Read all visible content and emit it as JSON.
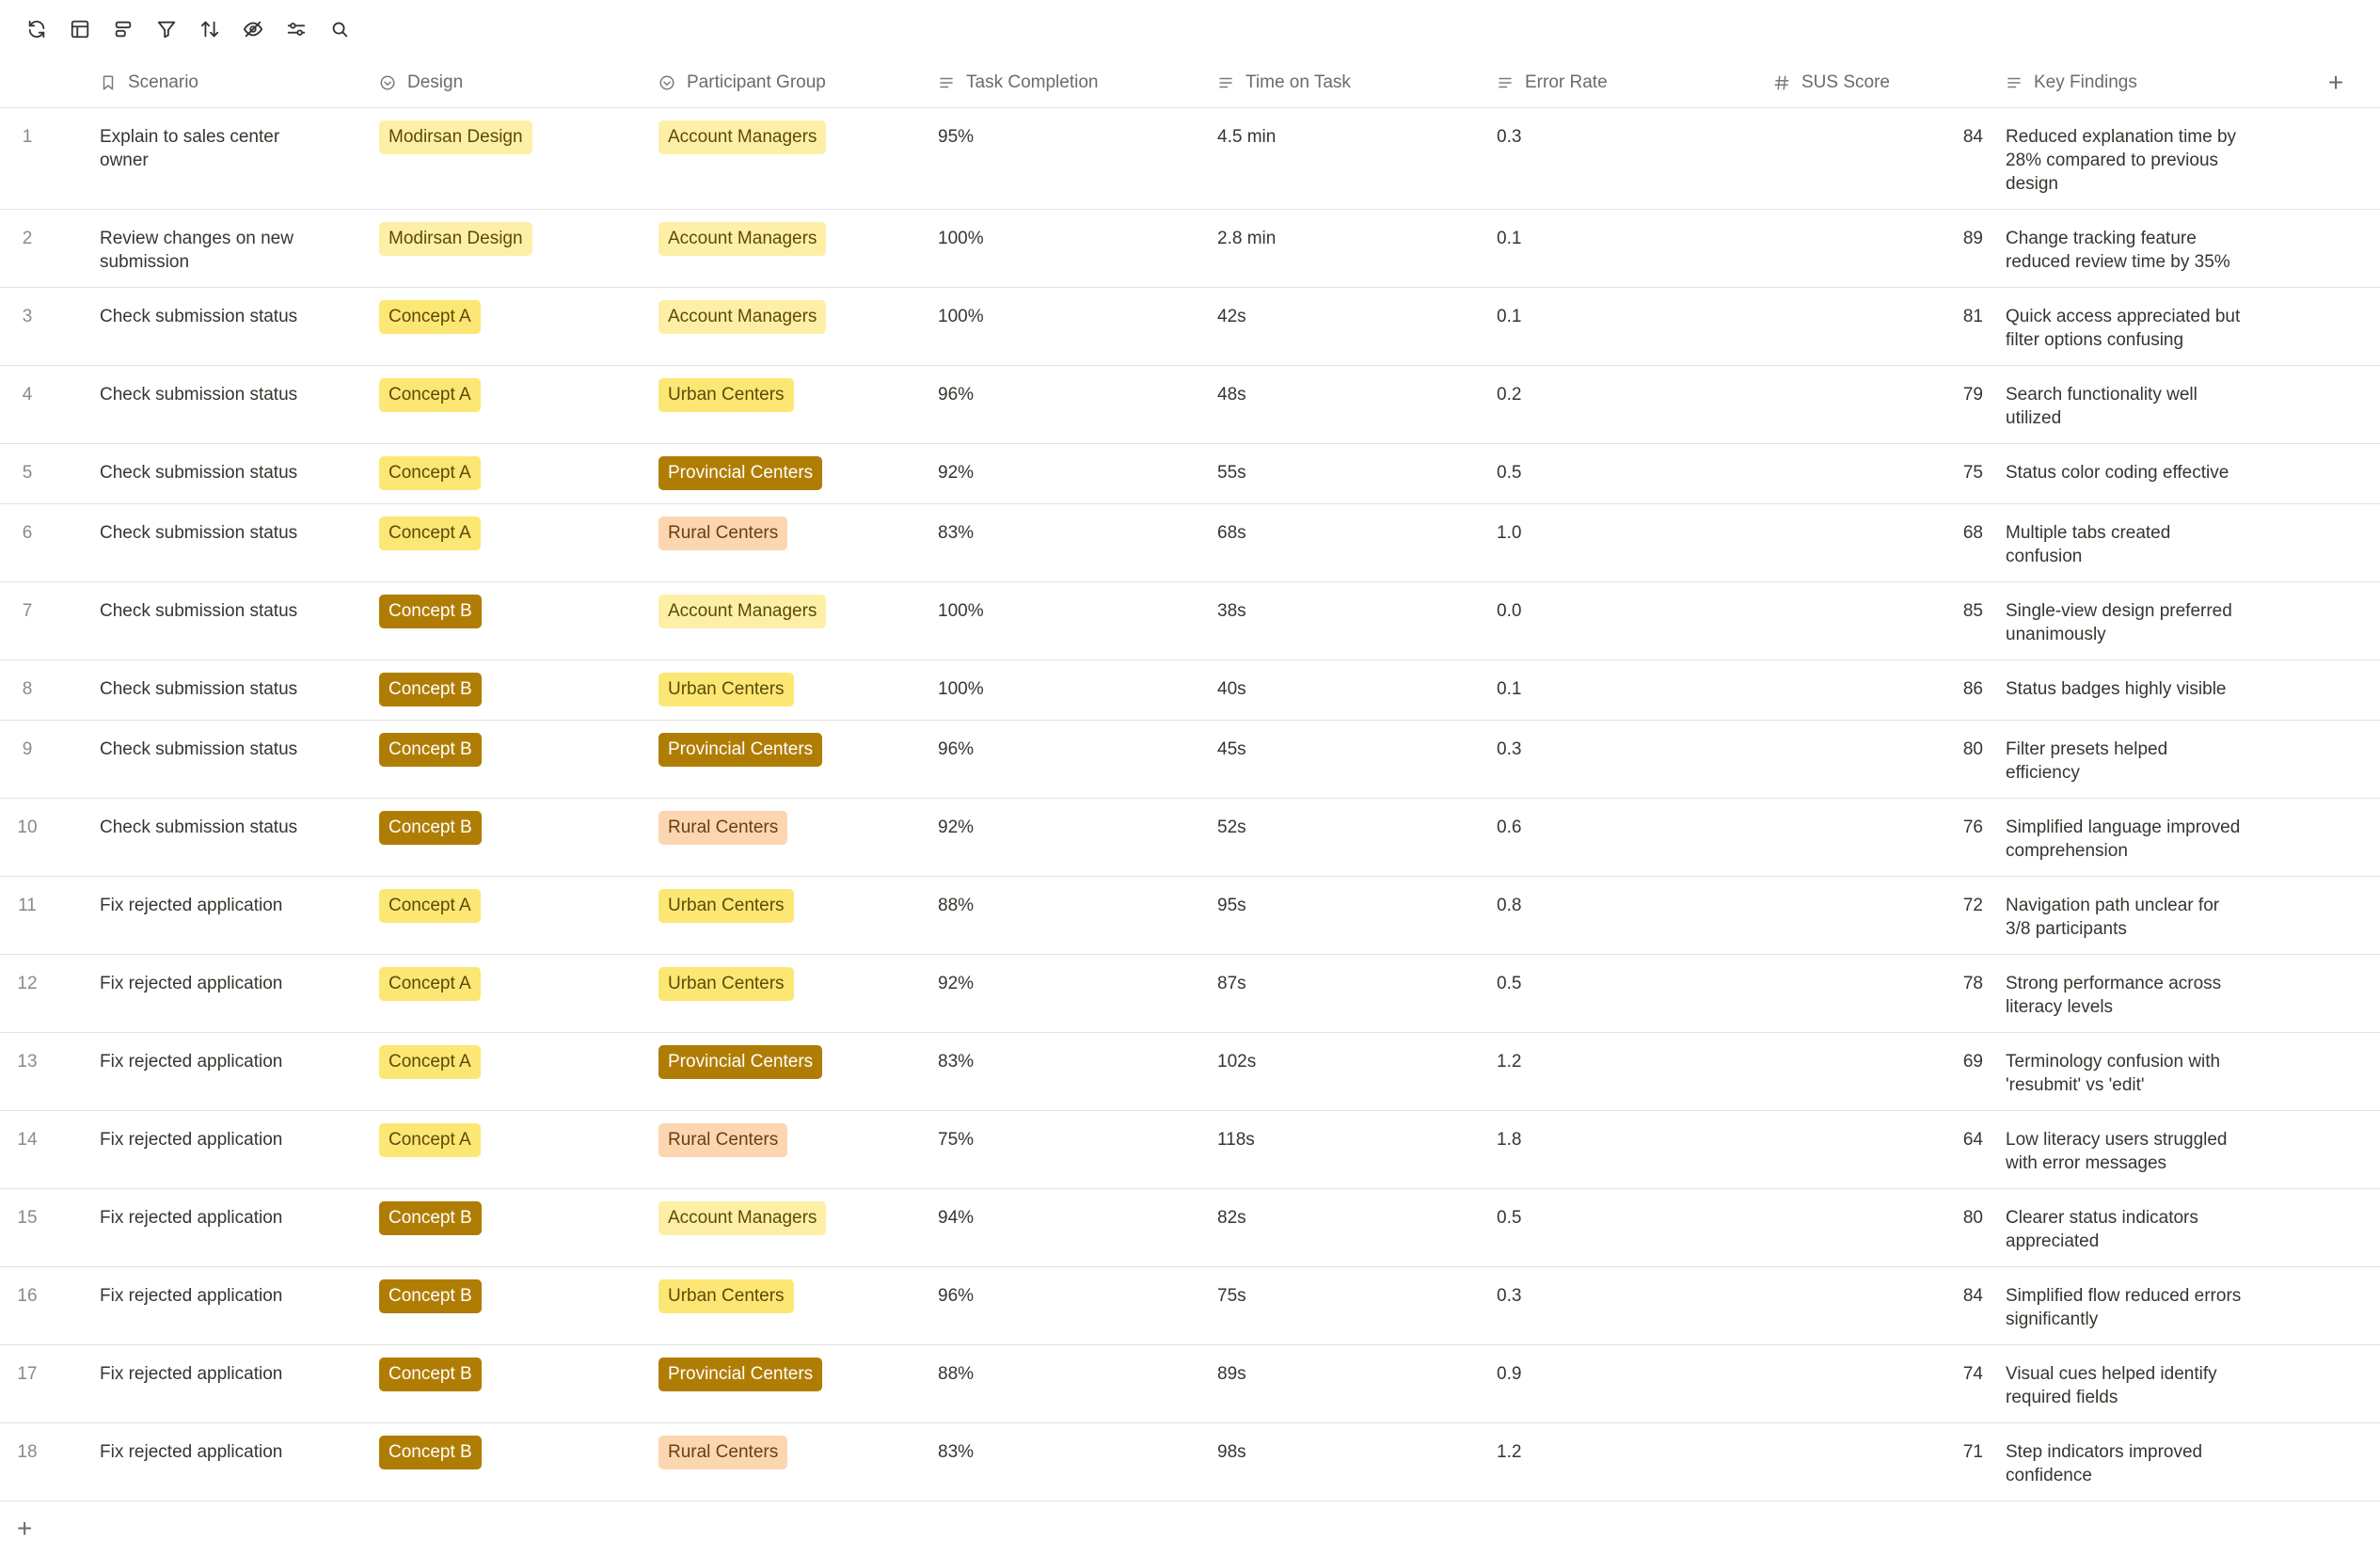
{
  "toolbar": {
    "icons": [
      "refresh-icon",
      "layout-icon",
      "group-icon",
      "filter-icon",
      "sort-icon",
      "hide-icon",
      "settings-sliders-icon",
      "search-icon"
    ]
  },
  "columns": {
    "scenario": "Scenario",
    "design": "Design",
    "participant_group": "Participant Group",
    "task_completion": "Task Completion",
    "time_on_task": "Time on Task",
    "error_rate": "Error Rate",
    "sus_score": "SUS Score",
    "key_findings": "Key Findings",
    "add_column": "+"
  },
  "tag_colors": {
    "Modirsan Design": {
      "bg": "#fdf0a6",
      "fg": "#5c4a06"
    },
    "Concept A": {
      "bg": "#fde774",
      "fg": "#5c4a06"
    },
    "Concept B": {
      "bg": "#b07d04",
      "fg": "#ffffff"
    },
    "Account Managers": {
      "bg": "#fdf0a6",
      "fg": "#5c4a06"
    },
    "Urban Centers": {
      "bg": "#fde774",
      "fg": "#5c4a06"
    },
    "Provincial Centers": {
      "bg": "#b07d04",
      "fg": "#ffffff"
    },
    "Rural Centers": {
      "bg": "#fcd6b0",
      "fg": "#6b3e10"
    }
  },
  "rows": [
    {
      "num": "1",
      "scenario": "Explain to sales center owner",
      "design": "Modirsan Design",
      "group": "Account Managers",
      "completion": "95%",
      "time": "4.5 min",
      "error": "0.3",
      "sus": "84",
      "finding": "Reduced explanation time by 28% compared to previous design"
    },
    {
      "num": "2",
      "scenario": "Review changes on new submission",
      "design": "Modirsan Design",
      "group": "Account Managers",
      "completion": "100%",
      "time": "2.8 min",
      "error": "0.1",
      "sus": "89",
      "finding": "Change tracking feature reduced review time by 35%"
    },
    {
      "num": "3",
      "scenario": "Check submission status",
      "design": "Concept A",
      "group": "Account Managers",
      "completion": "100%",
      "time": "42s",
      "error": "0.1",
      "sus": "81",
      "finding": "Quick access appreciated but filter options confusing"
    },
    {
      "num": "4",
      "scenario": "Check submission status",
      "design": "Concept A",
      "group": "Urban Centers",
      "completion": "96%",
      "time": "48s",
      "error": "0.2",
      "sus": "79",
      "finding": "Search functionality well utilized"
    },
    {
      "num": "5",
      "scenario": "Check submission status",
      "design": "Concept A",
      "group": "Provincial Centers",
      "completion": "92%",
      "time": "55s",
      "error": "0.5",
      "sus": "75",
      "finding": "Status color coding effective"
    },
    {
      "num": "6",
      "scenario": "Check submission status",
      "design": "Concept A",
      "group": "Rural Centers",
      "completion": "83%",
      "time": "68s",
      "error": "1.0",
      "sus": "68",
      "finding": "Multiple tabs created confusion"
    },
    {
      "num": "7",
      "scenario": "Check submission status",
      "design": "Concept B",
      "group": "Account Managers",
      "completion": "100%",
      "time": "38s",
      "error": "0.0",
      "sus": "85",
      "finding": "Single-view design preferred unanimously"
    },
    {
      "num": "8",
      "scenario": "Check submission status",
      "design": "Concept B",
      "group": "Urban Centers",
      "completion": "100%",
      "time": "40s",
      "error": "0.1",
      "sus": "86",
      "finding": "Status badges highly visible"
    },
    {
      "num": "9",
      "scenario": "Check submission status",
      "design": "Concept B",
      "group": "Provincial Centers",
      "completion": "96%",
      "time": "45s",
      "error": "0.3",
      "sus": "80",
      "finding": "Filter presets helped efficiency"
    },
    {
      "num": "10",
      "scenario": "Check submission status",
      "design": "Concept B",
      "group": "Rural Centers",
      "completion": "92%",
      "time": "52s",
      "error": "0.6",
      "sus": "76",
      "finding": "Simplified language improved comprehension"
    },
    {
      "num": "11",
      "scenario": "Fix rejected application",
      "design": "Concept A",
      "group": "Urban Centers",
      "completion": "88%",
      "time": "95s",
      "error": "0.8",
      "sus": "72",
      "finding": "Navigation path unclear for 3/8 participants"
    },
    {
      "num": "12",
      "scenario": "Fix rejected application",
      "design": "Concept A",
      "group": "Urban Centers",
      "completion": "92%",
      "time": "87s",
      "error": "0.5",
      "sus": "78",
      "finding": "Strong performance across literacy levels"
    },
    {
      "num": "13",
      "scenario": "Fix rejected application",
      "design": "Concept A",
      "group": "Provincial Centers",
      "completion": "83%",
      "time": "102s",
      "error": "1.2",
      "sus": "69",
      "finding": "Terminology confusion with 'resubmit' vs 'edit'"
    },
    {
      "num": "14",
      "scenario": "Fix rejected application",
      "design": "Concept A",
      "group": "Rural Centers",
      "completion": "75%",
      "time": "118s",
      "error": "1.8",
      "sus": "64",
      "finding": "Low literacy users struggled with error messages"
    },
    {
      "num": "15",
      "scenario": "Fix rejected application",
      "design": "Concept B",
      "group": "Account Managers",
      "completion": "94%",
      "time": "82s",
      "error": "0.5",
      "sus": "80",
      "finding": "Clearer status indicators appreciated"
    },
    {
      "num": "16",
      "scenario": "Fix rejected application",
      "design": "Concept B",
      "group": "Urban Centers",
      "completion": "96%",
      "time": "75s",
      "error": "0.3",
      "sus": "84",
      "finding": "Simplified flow reduced errors significantly"
    },
    {
      "num": "17",
      "scenario": "Fix rejected application",
      "design": "Concept B",
      "group": "Provincial Centers",
      "completion": "88%",
      "time": "89s",
      "error": "0.9",
      "sus": "74",
      "finding": "Visual cues helped identify required fields"
    },
    {
      "num": "18",
      "scenario": "Fix rejected application",
      "design": "Concept B",
      "group": "Rural Centers",
      "completion": "83%",
      "time": "98s",
      "error": "1.2",
      "sus": "71",
      "finding": "Step indicators improved confidence"
    }
  ],
  "add_row_label": "+"
}
